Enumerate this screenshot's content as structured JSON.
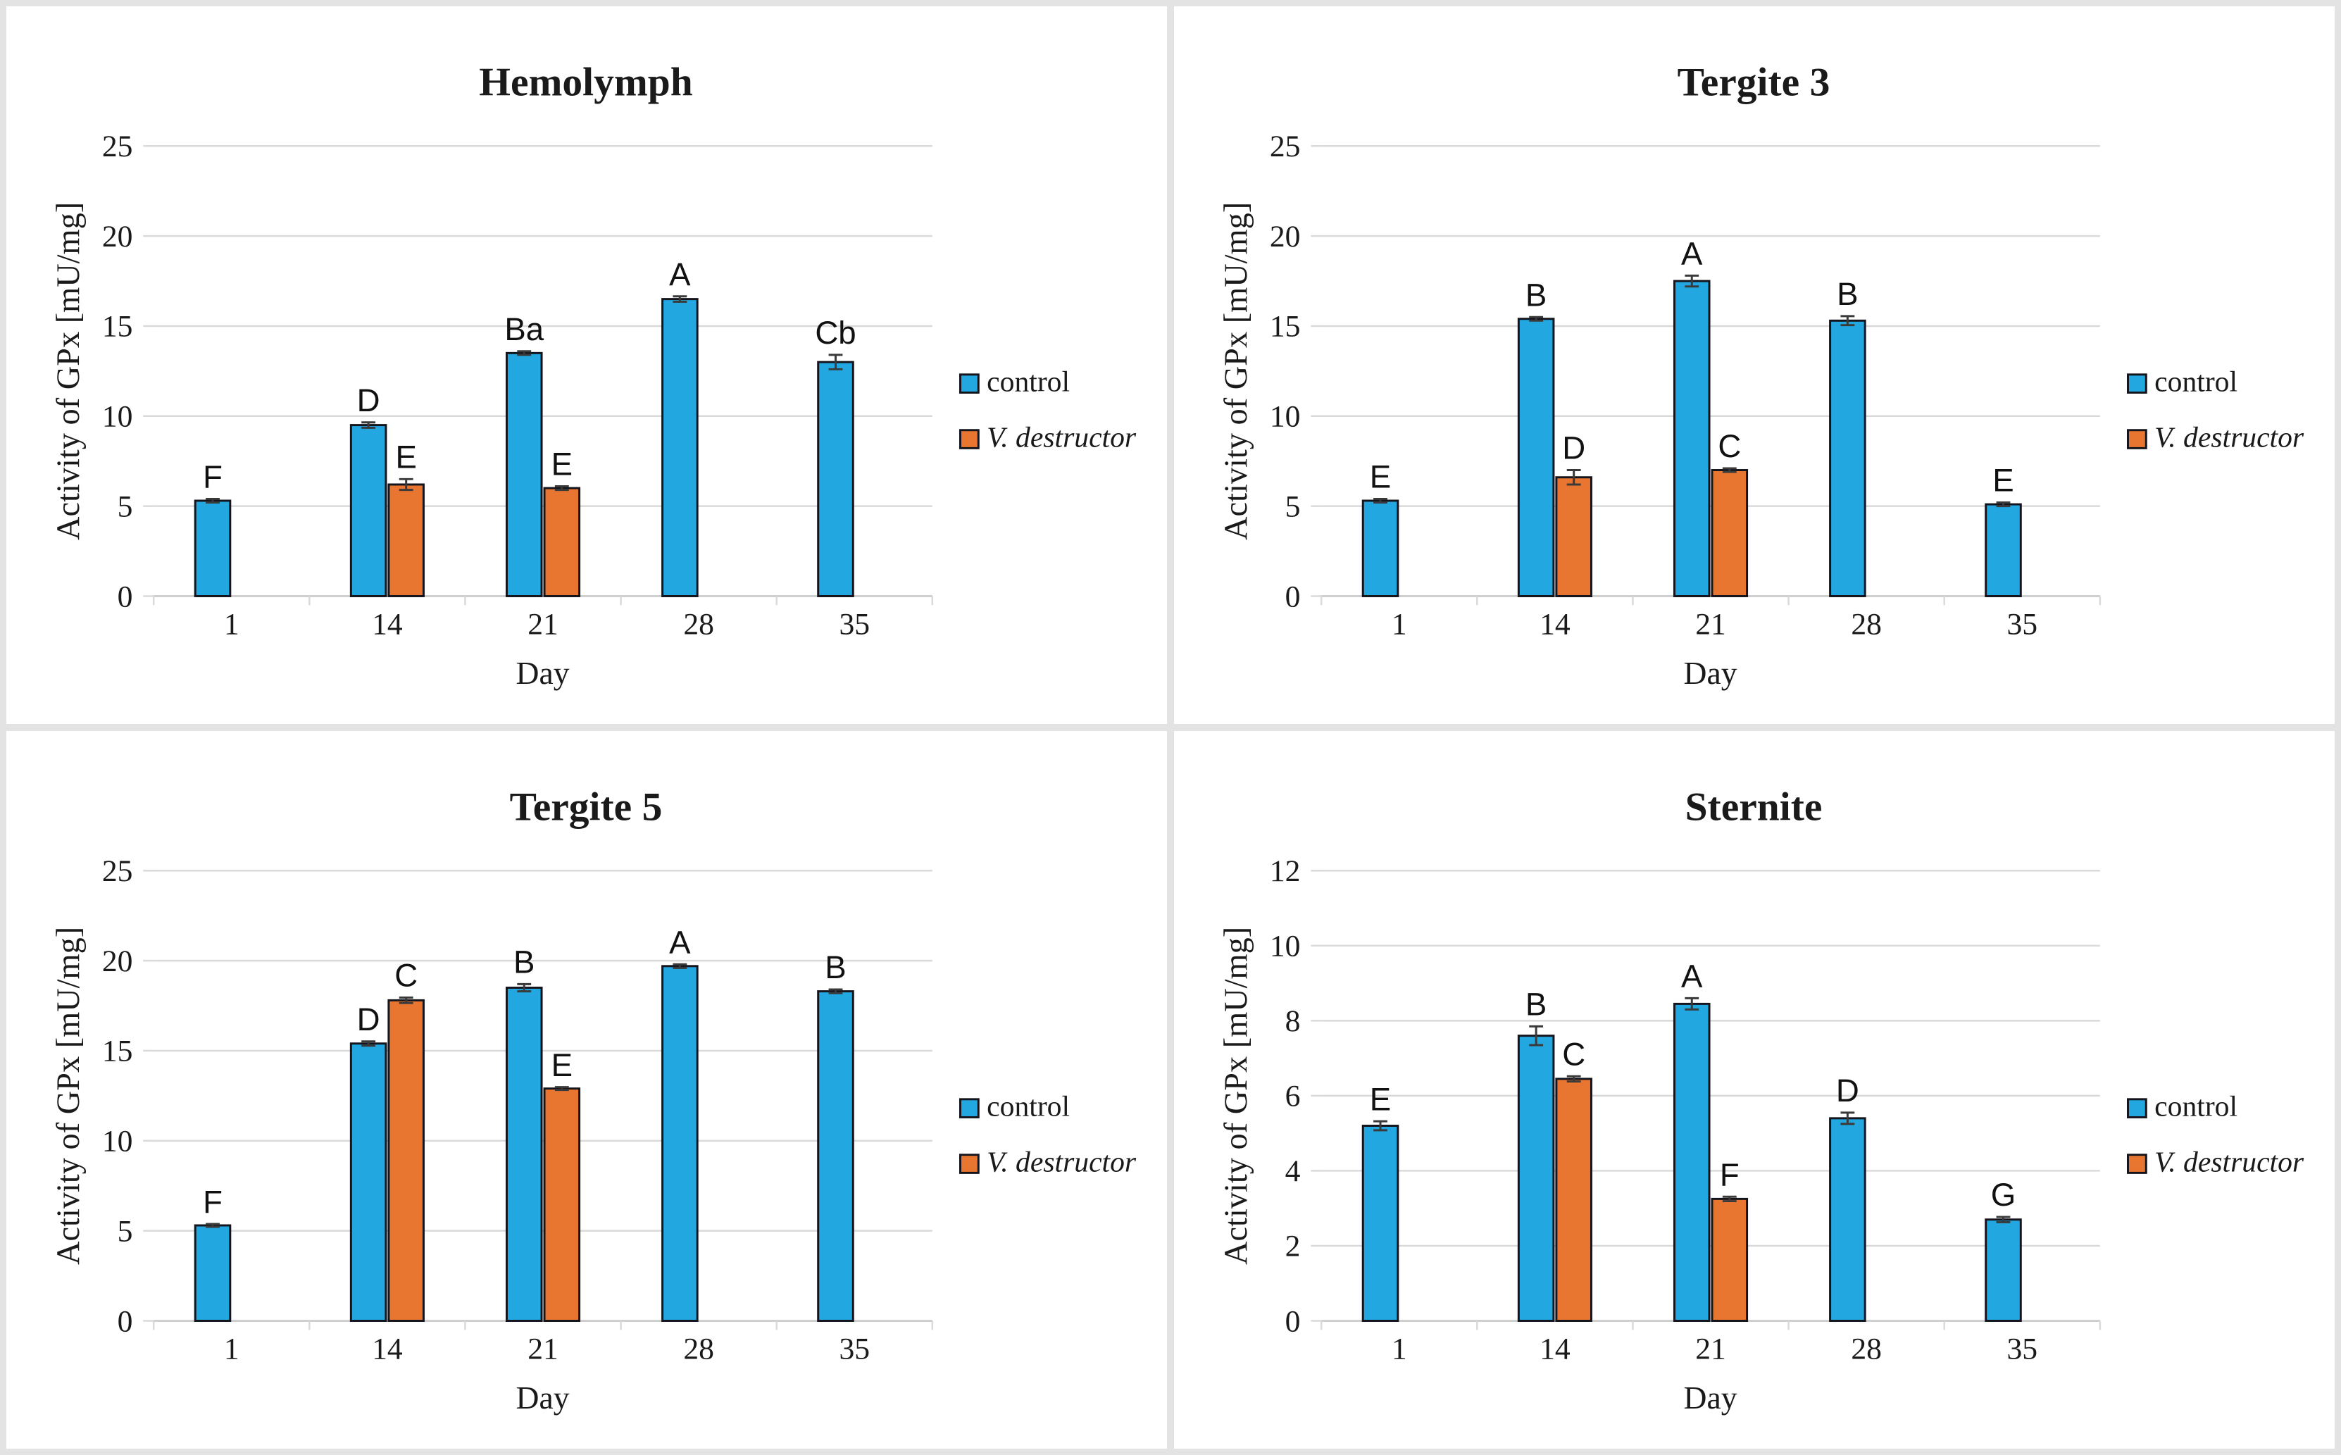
{
  "colors": {
    "control": "#22A7E0",
    "v_destructor": "#E87630",
    "bar_border": "#14141c",
    "gridline": "#d9d9d9",
    "axis_line": "#cfcfcf",
    "error_bar": "#3a3a3a",
    "frame": "#e3e3e3",
    "background": "#ffffff"
  },
  "legend": {
    "control_label": "control",
    "v_destructor_label": "V. destructor"
  },
  "chart_data": [
    {
      "type": "bar",
      "title": "Hemolymph",
      "xlabel": "Day",
      "ylabel": "Activity of GPx [mU/mg]",
      "categories": [
        "1",
        "14",
        "21",
        "28",
        "35"
      ],
      "ylim": [
        0,
        25
      ],
      "ytick_step": 5,
      "grid": true,
      "legend_position": "right",
      "series": [
        {
          "name": "control",
          "values": [
            5.3,
            9.5,
            13.5,
            16.5,
            13.0
          ],
          "errors": [
            0.1,
            0.15,
            0.1,
            0.15,
            0.4
          ],
          "point_labels": [
            "F",
            "D",
            "Ba",
            "A",
            "Cb"
          ]
        },
        {
          "name": "V. destructor",
          "values": [
            null,
            6.2,
            6.0,
            null,
            null
          ],
          "errors": [
            null,
            0.3,
            0.1,
            null,
            null
          ],
          "point_labels": [
            null,
            "E",
            "E",
            null,
            null
          ]
        }
      ]
    },
    {
      "type": "bar",
      "title": "Tergite 3",
      "xlabel": "Day",
      "ylabel": "Activity of GPx [mU/mg]",
      "categories": [
        "1",
        "14",
        "21",
        "28",
        "35"
      ],
      "ylim": [
        0,
        25
      ],
      "ytick_step": 5,
      "grid": true,
      "legend_position": "right",
      "series": [
        {
          "name": "control",
          "values": [
            5.3,
            15.4,
            17.5,
            15.3,
            5.1
          ],
          "errors": [
            0.1,
            0.1,
            0.3,
            0.25,
            0.1
          ],
          "point_labels": [
            "E",
            "B",
            "A",
            "B",
            "E"
          ]
        },
        {
          "name": "V. destructor",
          "values": [
            null,
            6.6,
            7.0,
            null,
            null
          ],
          "errors": [
            null,
            0.4,
            0.1,
            null,
            null
          ],
          "point_labels": [
            null,
            "D",
            "C",
            null,
            null
          ]
        }
      ]
    },
    {
      "type": "bar",
      "title": "Tergite 5",
      "xlabel": "Day",
      "ylabel": "Activity of GPx [mU/mg]",
      "categories": [
        "1",
        "14",
        "21",
        "28",
        "35"
      ],
      "ylim": [
        0,
        25
      ],
      "ytick_step": 5,
      "grid": true,
      "legend_position": "right",
      "series": [
        {
          "name": "control",
          "values": [
            5.3,
            15.4,
            18.5,
            19.7,
            18.3
          ],
          "errors": [
            0.08,
            0.12,
            0.2,
            0.1,
            0.1
          ],
          "point_labels": [
            "F",
            "D",
            "B",
            "A",
            "B"
          ]
        },
        {
          "name": "V. destructor",
          "values": [
            null,
            17.8,
            12.9,
            null,
            null
          ],
          "errors": [
            null,
            0.15,
            0.08,
            null,
            null
          ],
          "point_labels": [
            null,
            "C",
            "E",
            null,
            null
          ]
        }
      ]
    },
    {
      "type": "bar",
      "title": "Sternite",
      "xlabel": "Day",
      "ylabel": "Activity of GPx [mU/mg]",
      "categories": [
        "1",
        "14",
        "21",
        "28",
        "35"
      ],
      "ylim": [
        0,
        12
      ],
      "ytick_step": 2,
      "grid": true,
      "legend_position": "right",
      "series": [
        {
          "name": "control",
          "values": [
            5.2,
            7.6,
            8.45,
            5.4,
            2.7
          ],
          "errors": [
            0.12,
            0.25,
            0.15,
            0.15,
            0.07
          ],
          "point_labels": [
            "E",
            "B",
            "A",
            "D",
            "G"
          ]
        },
        {
          "name": "V. destructor",
          "values": [
            null,
            6.45,
            3.25,
            null,
            null
          ],
          "errors": [
            null,
            0.07,
            0.06,
            null,
            null
          ],
          "point_labels": [
            null,
            "C",
            "F",
            null,
            null
          ]
        }
      ]
    }
  ]
}
